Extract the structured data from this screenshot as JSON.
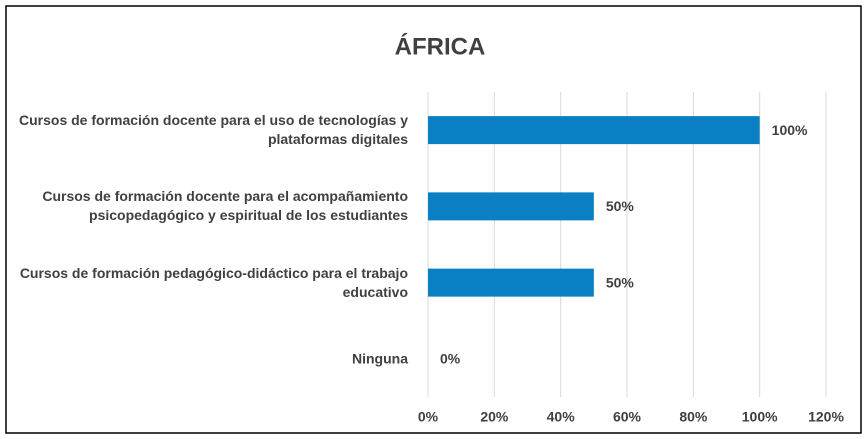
{
  "chart_data": {
    "type": "bar",
    "orientation": "horizontal",
    "title": "ÁFRICA",
    "categories": [
      "Cursos de formación docente para el uso de tecnologías y plataformas digitales",
      "Cursos de formación docente para el acompañamiento psicopedagógico y espiritual de los estudiantes",
      "Cursos de formación pedagógico-didáctico para el trabajo educativo",
      "Ninguna"
    ],
    "values": [
      100,
      50,
      50,
      0
    ],
    "value_labels": [
      "100%",
      "50%",
      "50%",
      "0%"
    ],
    "color": "#0a7fc4",
    "xlim": [
      0,
      120
    ],
    "xticks": [
      {
        "value": 0,
        "label": "0%"
      },
      {
        "value": 20,
        "label": "20%"
      },
      {
        "value": 40,
        "label": "40%"
      },
      {
        "value": 60,
        "label": "60%"
      },
      {
        "value": 80,
        "label": "80%"
      },
      {
        "value": 100,
        "label": "100%"
      },
      {
        "value": 120,
        "label": "120%"
      }
    ],
    "grid": true
  }
}
